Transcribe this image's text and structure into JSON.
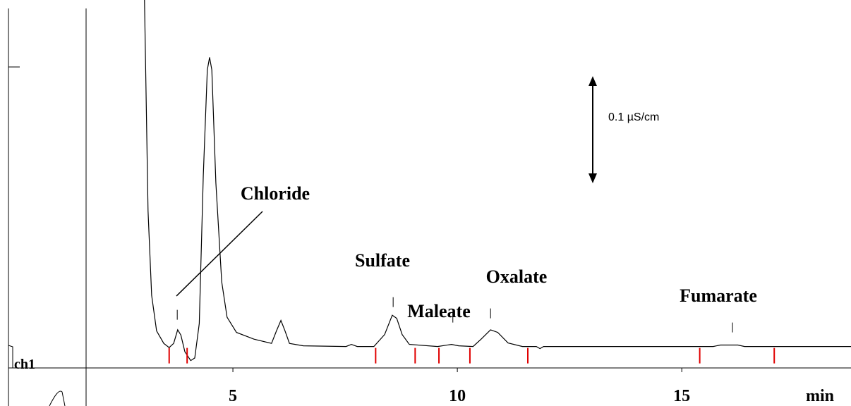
{
  "chart_data": {
    "type": "line",
    "ylabel": "ch1",
    "xlabel": "min",
    "xlim": [
      0,
      18.77
    ],
    "ylim": [
      -0.057,
      0.332
    ],
    "xticks": [
      5,
      10,
      15
    ],
    "scale_bar": {
      "value": 0.1,
      "label": "0.1  µS/cm"
    },
    "series": [
      {
        "color": "#000000",
        "x": [
          3.03,
          3.11,
          3.19,
          3.3,
          3.46,
          3.58,
          3.68,
          3.77,
          3.84,
          3.93,
          4.06,
          4.15,
          4.25,
          4.34,
          4.43,
          4.48,
          4.53,
          4.62,
          4.75,
          4.87,
          5.08,
          5.47,
          5.86,
          5.97,
          6.07,
          6.16,
          6.26,
          6.57,
          7.52,
          7.64,
          7.77,
          8.14,
          8.38,
          8.55,
          8.65,
          8.77,
          8.93,
          9.56,
          9.87,
          10.03,
          10.35,
          10.53,
          10.74,
          10.9,
          11.13,
          11.45,
          11.76,
          11.84,
          11.92,
          15.7,
          15.86,
          16.25,
          16.4,
          18.77
        ],
        "values": [
          0.335,
          0.13,
          0.049,
          0.015,
          0.003,
          -0.001,
          0.003,
          0.016,
          0.011,
          -0.005,
          -0.0135,
          -0.011,
          0.022,
          0.164,
          0.265,
          0.277,
          0.265,
          0.157,
          0.062,
          0.028,
          0.0135,
          0.007,
          0.003,
          0.015,
          0.025,
          0.015,
          0.003,
          0.0007,
          0,
          0.002,
          0,
          0,
          0.0115,
          0.03,
          0.027,
          0.0115,
          0.002,
          0,
          0.002,
          0.0007,
          0,
          0.007,
          0.016,
          0.0135,
          0.0034,
          0,
          0,
          -0.002,
          0,
          0,
          0.0014,
          0.0014,
          0,
          0
        ]
      }
    ],
    "integration_marks": {
      "color": "#e00000",
      "x": [
        3.58,
        3.98,
        8.18,
        9.06,
        9.59,
        10.28,
        11.57,
        15.4,
        17.06
      ]
    },
    "annotations": [
      {
        "label": "Chloride",
        "x": 3.76
      },
      {
        "label": "Sulfate",
        "x": 8.57
      },
      {
        "label": "Maleate",
        "x": 9.9
      },
      {
        "label": "Oxalate",
        "x": 10.74
      },
      {
        "label": "Fumarate",
        "x": 16.13
      }
    ]
  }
}
